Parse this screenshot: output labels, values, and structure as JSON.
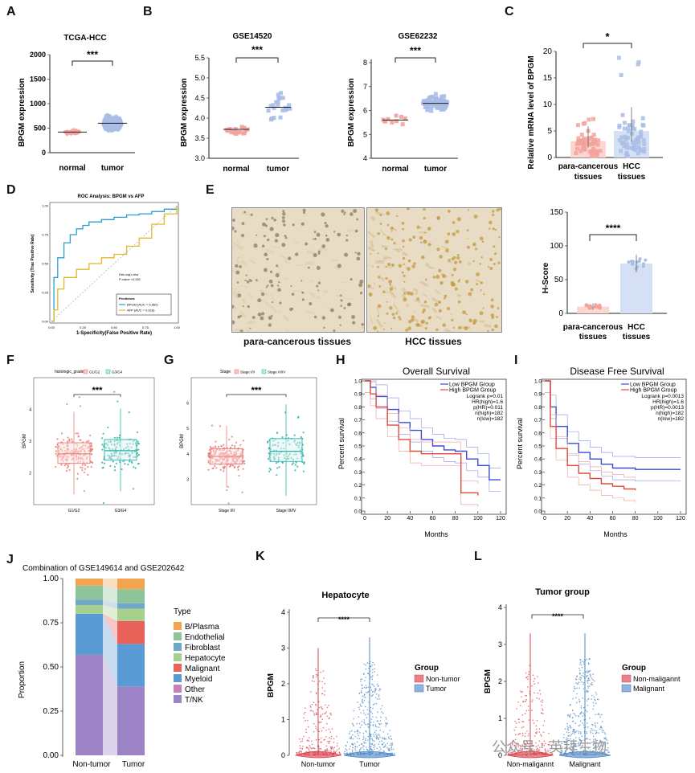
{
  "panel_labels": {
    "A": "A",
    "B": "B",
    "C": "C",
    "D": "D",
    "E": "E",
    "F": "F",
    "G": "G",
    "H": "H",
    "I": "I",
    "J": "J",
    "K": "K",
    "L": "L"
  },
  "sig": {
    "three": "***",
    "one": "*",
    "four": "****"
  },
  "colors": {
    "normal": "#f4a29b",
    "tumor": "#a9bde6",
    "red": "#e24a3b",
    "blue": "#3b4bd6",
    "teal": "#2fb3a8",
    "salmon": "#e87f7a",
    "tissue": "#d9c69c"
  },
  "A": {
    "title": "TCGA-HCC",
    "ylabel": "BPGM expression",
    "yticks": [
      "0",
      "500",
      "1000",
      "1500",
      "2000"
    ],
    "xcats": [
      "normal",
      "tumor"
    ]
  },
  "B1": {
    "title": "GSE14520",
    "ylabel": "BPGM expression",
    "yticks": [
      "3.0",
      "3.5",
      "4.0",
      "4.5",
      "5.0",
      "5.5"
    ],
    "xcats": [
      "normal",
      "tumor"
    ]
  },
  "B2": {
    "title": "GSE62232",
    "ylabel": "BPGM expression",
    "yticks": [
      "4",
      "5",
      "6",
      "7",
      "8"
    ],
    "xcats": [
      "normal",
      "tumor"
    ]
  },
  "C": {
    "ylabel": "Relative mRNA level of BPGM",
    "yticks": [
      "0",
      "5",
      "10",
      "15",
      "20"
    ],
    "xcats": [
      "para-cancerous tissues",
      "HCC tissues"
    ]
  },
  "D": {
    "title": "ROC Analysis: BPGM vs AFP",
    "ylabel": "Sensitivity (True Positive Rate)",
    "xlabel": "1-Specificity(False Positive Rate)",
    "xticks": [
      "0.00",
      "0.25",
      "0.50",
      "0.75",
      "1.00"
    ],
    "yticks": [
      "0.00",
      "0.25",
      "0.50",
      "0.75",
      "1.00"
    ],
    "test_line1": "DeLong's test",
    "test_line2": "P-value <0.001",
    "legend_title": "Predictors",
    "series": [
      "BPGM (AUC = 0.852)",
      "AFP (AUC = 0.616)"
    ]
  },
  "E": {
    "captions": [
      "para-cancerous tissues",
      "HCC tissues"
    ],
    "ylabel": "H-Score",
    "yticks": [
      "0",
      "50",
      "100",
      "150"
    ],
    "xcats": [
      "para-cancerous tissues",
      "HCC tissues"
    ]
  },
  "F": {
    "legend_title": "histologic_grade",
    "legend": [
      "G1/G2",
      "G3/G4"
    ],
    "ylabel": "BPGM",
    "yticks": [
      "2",
      "3",
      "4"
    ],
    "xcats": [
      "G1/G2",
      "G3/G4"
    ]
  },
  "G": {
    "legend_title": "Stage",
    "legend": [
      "Stage I/II",
      "Stage III/IV"
    ],
    "ylabel": "BPGM",
    "yticks": [
      "3",
      "4",
      "5",
      "6"
    ],
    "xcats": [
      "Stage I/II",
      "Stage III/IV"
    ]
  },
  "H": {
    "title": "Overall Survival",
    "ylabel": "Percent survival",
    "xlabel": "Months",
    "xticks": [
      "0",
      "20",
      "40",
      "60",
      "80",
      "100",
      "120"
    ],
    "yticks": [
      "0.0",
      "0.1",
      "0.2",
      "0.3",
      "0.4",
      "0.5",
      "0.6",
      "0.7",
      "0.8",
      "0.9",
      "1.0"
    ],
    "legend": [
      "Low BPGM Group",
      "High BPGM Group"
    ],
    "stats": [
      "Logrank p=0.01",
      "HR(high)=1.6",
      "p(HR)=0.011",
      "n(high)=182",
      "n(low)=182"
    ]
  },
  "I": {
    "title": "Disease Free Survival",
    "ylabel": "Percent survival",
    "xlabel": "Months",
    "xticks": [
      "0",
      "20",
      "40",
      "60",
      "80",
      "100",
      "120"
    ],
    "yticks": [
      "0.0",
      "0.1",
      "0.2",
      "0.3",
      "0.4",
      "0.5",
      "0.6",
      "0.7",
      "0.8",
      "0.9",
      "1.0"
    ],
    "legend": [
      "Low BPGM Group",
      "High BPGM Group"
    ],
    "stats": [
      "Logrank p=0.0013",
      "HR(high)=1.6",
      "p(HR)=0.0013",
      "n(high)=182",
      "n(low)=182"
    ]
  },
  "J": {
    "title": "Combination of GSE149614 and GSE202642",
    "ylabel": "Proportion",
    "yticks": [
      "0.00",
      "0.25",
      "0.50",
      "0.75",
      "1.00"
    ],
    "xcats": [
      "Non-tumor",
      "Tumor"
    ],
    "legend_title": "Type",
    "legend": [
      "B/Plasma",
      "Endothelial",
      "Fibroblast",
      "Hepatocyte",
      "Malignant",
      "Myeloid",
      "Other",
      "T/NK"
    ]
  },
  "K": {
    "title": "Hepatocyte",
    "ylabel": "BPGM",
    "yticks": [
      "0",
      "1",
      "2",
      "3",
      "4"
    ],
    "xcats": [
      "Non-tumor",
      "Tumor"
    ],
    "legend_title": "Group",
    "legend": [
      "Non-tumor",
      "Tumor"
    ]
  },
  "L": {
    "title": "Tumor group",
    "ylabel": "BPGM",
    "yticks": [
      "0",
      "1",
      "2",
      "3",
      "4"
    ],
    "xcats": [
      "Non-maligannt",
      "Malignant"
    ],
    "legend_title": "Group",
    "legend": [
      "Non-maligannt",
      "Malignant"
    ]
  },
  "watermark": "公众号 · 英拜生物",
  "chart_data": [
    {
      "panel": "A",
      "type": "scatter",
      "title": "TCGA-HCC",
      "ylabel": "BPGM expression",
      "ylim": [
        0,
        2000
      ],
      "categories": [
        "normal",
        "tumor"
      ],
      "series": [
        {
          "name": "normal",
          "mean": 420
        },
        {
          "name": "tumor",
          "mean": 600
        }
      ]
    },
    {
      "panel": "B-GSE14520",
      "type": "scatter",
      "title": "GSE14520",
      "ylabel": "BPGM expression",
      "ylim": [
        3.0,
        5.5
      ],
      "categories": [
        "normal",
        "tumor"
      ],
      "series": [
        {
          "name": "normal",
          "mean": 3.72
        },
        {
          "name": "tumor",
          "mean": 4.27
        }
      ]
    },
    {
      "panel": "B-GSE62232",
      "type": "scatter",
      "title": "GSE62232",
      "ylabel": "BPGM expression",
      "ylim": [
        4,
        8
      ],
      "categories": [
        "normal",
        "tumor"
      ],
      "series": [
        {
          "name": "normal",
          "mean": 5.6
        },
        {
          "name": "tumor",
          "mean": 6.3
        }
      ]
    },
    {
      "panel": "C",
      "type": "bar",
      "ylabel": "Relative mRNA level of BPGM",
      "ylim": [
        0,
        20
      ],
      "categories": [
        "para-cancerous tissues",
        "HCC tissues"
      ],
      "values": [
        3.1,
        5.0
      ]
    },
    {
      "panel": "D",
      "type": "line",
      "title": "ROC Analysis: BPGM vs AFP",
      "xlabel": "1-Specificity(False Positive Rate)",
      "ylabel": "Sensitivity (True Positive Rate)",
      "xlim": [
        0,
        1
      ],
      "ylim": [
        0,
        1
      ],
      "series": [
        {
          "name": "BPGM (AUC = 0.852)",
          "x": [
            0,
            0.02,
            0.05,
            0.1,
            0.15,
            0.2,
            0.25,
            0.3,
            0.4,
            0.5,
            0.6,
            0.7,
            0.8,
            0.9,
            1.0
          ],
          "y": [
            0,
            0.38,
            0.55,
            0.68,
            0.75,
            0.8,
            0.83,
            0.86,
            0.88,
            0.9,
            0.92,
            0.93,
            0.95,
            0.97,
            1.0
          ]
        },
        {
          "name": "AFP (AUC = 0.616)",
          "x": [
            0,
            0.02,
            0.05,
            0.1,
            0.2,
            0.3,
            0.4,
            0.5,
            0.6,
            0.7,
            0.8,
            0.9,
            1.0
          ],
          "y": [
            0,
            0.1,
            0.28,
            0.38,
            0.45,
            0.5,
            0.55,
            0.58,
            0.65,
            0.72,
            0.84,
            0.93,
            1.0
          ]
        }
      ]
    },
    {
      "panel": "E",
      "type": "bar",
      "ylabel": "H-Score",
      "ylim": [
        0,
        150
      ],
      "categories": [
        "para-cancerous tissues",
        "HCC tissues"
      ],
      "values": [
        10,
        74
      ]
    },
    {
      "panel": "F",
      "type": "box",
      "ylabel": "BPGM",
      "ylim": [
        1,
        5
      ],
      "categories": [
        "G1/G2",
        "G3/G4"
      ],
      "medians": [
        2.6,
        2.7
      ],
      "q1": [
        2.3,
        2.4
      ],
      "q3": [
        2.95,
        3.05
      ]
    },
    {
      "panel": "G",
      "type": "box",
      "ylabel": "BPGM",
      "ylim": [
        2,
        7
      ],
      "categories": [
        "Stage I/II",
        "Stage III/IV"
      ],
      "medians": [
        3.9,
        4.1
      ],
      "q1": [
        3.6,
        3.7
      ],
      "q3": [
        4.2,
        4.6
      ]
    },
    {
      "panel": "H",
      "type": "line",
      "title": "Overall Survival",
      "xlabel": "Months",
      "ylabel": "Percent survival",
      "xlim": [
        0,
        125
      ],
      "ylim": [
        0,
        1
      ],
      "series": [
        {
          "name": "Low BPGM Group",
          "x": [
            0,
            5,
            10,
            20,
            30,
            40,
            50,
            60,
            70,
            80,
            90,
            100,
            110,
            120
          ],
          "y": [
            1,
            0.95,
            0.88,
            0.78,
            0.68,
            0.62,
            0.55,
            0.5,
            0.47,
            0.46,
            0.4,
            0.35,
            0.24,
            0.24
          ]
        },
        {
          "name": "High BPGM Group",
          "x": [
            0,
            5,
            10,
            20,
            30,
            40,
            50,
            60,
            70,
            80,
            85,
            90,
            100
          ],
          "y": [
            1,
            0.9,
            0.8,
            0.66,
            0.55,
            0.46,
            0.44,
            0.44,
            0.44,
            0.44,
            0.14,
            0.14,
            0.12
          ]
        }
      ]
    },
    {
      "panel": "I",
      "type": "line",
      "title": "Disease Free Survival",
      "xlabel": "Months",
      "ylabel": "Percent survival",
      "xlim": [
        0,
        125
      ],
      "ylim": [
        0,
        1
      ],
      "series": [
        {
          "name": "Low BPGM Group",
          "x": [
            0,
            5,
            10,
            20,
            30,
            40,
            50,
            60,
            80,
            100,
            120
          ],
          "y": [
            1,
            0.8,
            0.65,
            0.52,
            0.45,
            0.4,
            0.36,
            0.33,
            0.32,
            0.32,
            0.32
          ]
        },
        {
          "name": "High BPGM Group",
          "x": [
            0,
            5,
            10,
            20,
            30,
            40,
            50,
            60,
            70,
            80
          ],
          "y": [
            1,
            0.65,
            0.48,
            0.35,
            0.29,
            0.25,
            0.21,
            0.19,
            0.17,
            0.16
          ]
        }
      ]
    },
    {
      "panel": "J",
      "type": "bar",
      "title": "Combination of GSE149614 and GSE202642",
      "ylabel": "Proportion",
      "categories": [
        "Non-tumor",
        "Tumor"
      ],
      "series": [
        {
          "name": "T/NK",
          "values": [
            0.57,
            0.39
          ]
        },
        {
          "name": "Other",
          "values": [
            0.0,
            0.0
          ]
        },
        {
          "name": "Myeloid",
          "values": [
            0.23,
            0.24
          ]
        },
        {
          "name": "Malignant",
          "values": [
            0.0,
            0.13
          ]
        },
        {
          "name": "Hepatocyte",
          "values": [
            0.05,
            0.07
          ]
        },
        {
          "name": "Fibroblast",
          "values": [
            0.03,
            0.03
          ]
        },
        {
          "name": "Endothelial",
          "values": [
            0.08,
            0.08
          ]
        },
        {
          "name": "B/Plasma",
          "values": [
            0.04,
            0.06
          ]
        }
      ]
    },
    {
      "panel": "K",
      "type": "violin",
      "title": "Hepatocyte",
      "ylabel": "BPGM",
      "ylim": [
        0,
        4
      ],
      "categories": [
        "Non-tumor",
        "Tumor"
      ]
    },
    {
      "panel": "L",
      "type": "violin",
      "title": "Tumor group",
      "ylabel": "BPGM",
      "ylim": [
        0,
        4
      ],
      "categories": [
        "Non-maligannt",
        "Malignant"
      ]
    }
  ]
}
